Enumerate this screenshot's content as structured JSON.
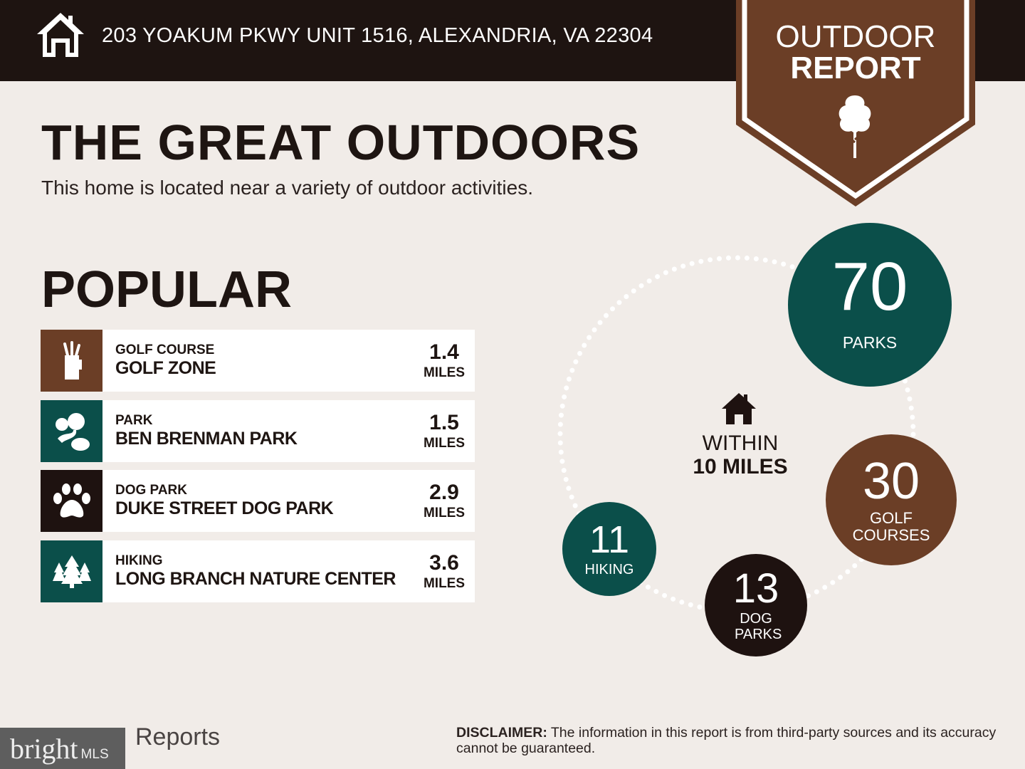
{
  "header": {
    "address": "203 YOAKUM PKWY UNIT 1516, ALEXANDRIA, VA 22304",
    "icon": "home-icon"
  },
  "badge": {
    "line1": "OUTDOOR",
    "line2": "REPORT",
    "icon": "tree-icon",
    "color": "#6b3e26"
  },
  "title": "THE GREAT OUTDOORS",
  "subtitle": "This home is located near a variety of outdoor activities.",
  "popular": {
    "heading": "POPULAR",
    "items": [
      {
        "category": "GOLF COURSE",
        "name": "GOLF ZONE",
        "distance": "1.4",
        "unit": "MILES",
        "icon": "golf-bag-icon",
        "color": "#6b3e26"
      },
      {
        "category": "PARK",
        "name": "BEN BRENMAN PARK",
        "distance": "1.5",
        "unit": "MILES",
        "icon": "park-icon",
        "color": "#0b4f4a"
      },
      {
        "category": "DOG PARK",
        "name": "DUKE STREET DOG PARK",
        "distance": "2.9",
        "unit": "MILES",
        "icon": "paw-icon",
        "color": "#1e1210"
      },
      {
        "category": "HIKING",
        "name": "LONG BRANCH NATURE CENTER",
        "distance": "3.6",
        "unit": "MILES",
        "icon": "pine-trees-icon",
        "color": "#0b4f4a"
      }
    ]
  },
  "summary": {
    "within_line1": "WITHIN",
    "within_line2": "10 MILES",
    "counts": [
      {
        "num": "70",
        "label": "PARKS",
        "color": "#0b4f4a"
      },
      {
        "num": "30",
        "label": "GOLF COURSES",
        "color": "#6b3e26"
      },
      {
        "num": "13",
        "label": "DOG PARKS",
        "color": "#1e1210"
      },
      {
        "num": "11",
        "label": "HIKING",
        "color": "#0b4f4a"
      }
    ]
  },
  "footer": {
    "reports_logo": "Reports",
    "bright_logo": "bright",
    "bright_mls": "MLS",
    "disclaimer_label": "DISCLAIMER:",
    "disclaimer_text": " The information in this report is from third-party sources and its accuracy cannot be guaranteed."
  }
}
